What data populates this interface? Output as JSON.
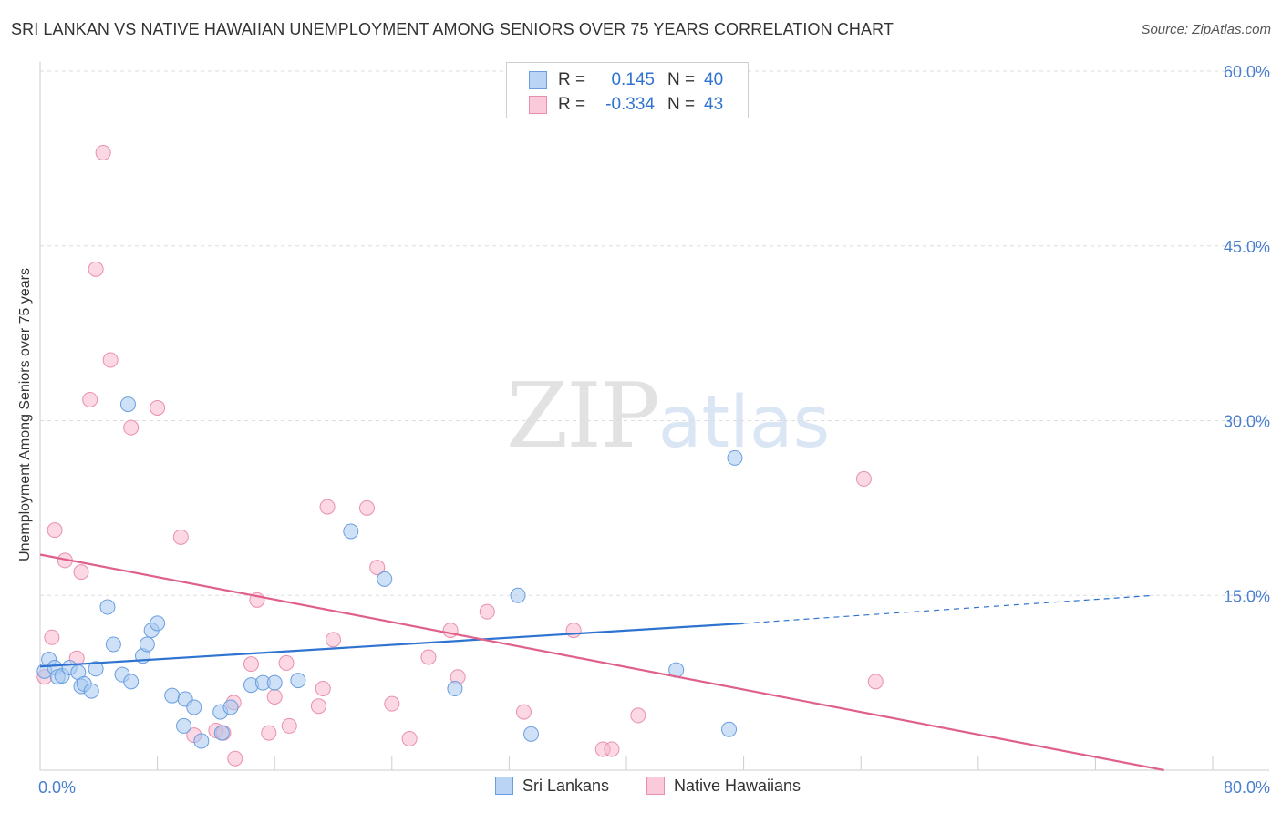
{
  "title": "SRI LANKAN VS NATIVE HAWAIIAN UNEMPLOYMENT AMONG SENIORS OVER 75 YEARS CORRELATION CHART",
  "source": "Source: ZipAtlas.com",
  "watermark": {
    "zip": "ZIP",
    "atlas": "atlas"
  },
  "colors": {
    "blue_fill": "#a8c8f0",
    "blue_stroke": "#6a9ee0",
    "blue_line": "#2f73d0",
    "pink_fill": "#f7b8cc",
    "pink_stroke": "#ea8fab",
    "pink_line": "#e0608c",
    "tick_label": "#4a7fd0",
    "grid": "#dddddd"
  },
  "legend": {
    "rows": [
      {
        "r_label": "R =",
        "r_value": "0.145",
        "n_label": "N =",
        "n_value": "40"
      },
      {
        "r_label": "R =",
        "r_value": "-0.334",
        "n_label": "N =",
        "n_value": "43"
      }
    ]
  },
  "bottom_legend": {
    "series1": "Sri Lankans",
    "series2": "Native Hawaiians"
  },
  "chart_data": {
    "type": "scatter",
    "title": "SRI LANKAN VS NATIVE HAWAIIAN UNEMPLOYMENT AMONG SENIORS OVER 75 YEARS CORRELATION CHART",
    "xlabel": "",
    "ylabel": "Unemployment Among Seniors over 75 years",
    "xlim": [
      0,
      80
    ],
    "ylim": [
      0,
      60
    ],
    "x_tick_labels": [
      "0.0%",
      "80.0%"
    ],
    "y_ticks": [
      15,
      30,
      45,
      60
    ],
    "y_tick_labels": [
      "15.0%",
      "30.0%",
      "45.0%",
      "60.0%"
    ],
    "grid": true,
    "series": [
      {
        "name": "Sri Lankans",
        "r": 0.145,
        "n": 40,
        "trend": {
          "x0": 0,
          "y0": 8.9,
          "x1": 48,
          "y1": 12.6,
          "dash_x1": 76,
          "dash_y1": 15.0
        },
        "points": [
          [
            0.3,
            8.5
          ],
          [
            0.6,
            9.5
          ],
          [
            1.0,
            8.8
          ],
          [
            1.2,
            8.0
          ],
          [
            1.5,
            8.1
          ],
          [
            2.0,
            8.8
          ],
          [
            2.6,
            8.4
          ],
          [
            2.8,
            7.2
          ],
          [
            3.0,
            7.4
          ],
          [
            3.5,
            6.8
          ],
          [
            3.8,
            8.7
          ],
          [
            4.6,
            14.0
          ],
          [
            5.0,
            10.8
          ],
          [
            5.6,
            8.2
          ],
          [
            6.2,
            7.6
          ],
          [
            7.0,
            9.8
          ],
          [
            7.3,
            10.8
          ],
          [
            7.6,
            12.0
          ],
          [
            8.0,
            12.6
          ],
          [
            9.0,
            6.4
          ],
          [
            9.8,
            3.8
          ],
          [
            9.9,
            6.1
          ],
          [
            10.5,
            5.4
          ],
          [
            11.0,
            2.5
          ],
          [
            12.3,
            5.0
          ],
          [
            12.4,
            3.2
          ],
          [
            13.0,
            5.4
          ],
          [
            14.4,
            7.3
          ],
          [
            15.2,
            7.5
          ],
          [
            16.0,
            7.5
          ],
          [
            17.6,
            7.7
          ],
          [
            21.2,
            20.5
          ],
          [
            23.5,
            16.4
          ],
          [
            28.3,
            7.0
          ],
          [
            32.6,
            15.0
          ],
          [
            33.5,
            3.1
          ],
          [
            43.4,
            8.6
          ],
          [
            47.0,
            3.5
          ],
          [
            47.4,
            26.8
          ],
          [
            6.0,
            31.4
          ]
        ]
      },
      {
        "name": "Native Hawaiians",
        "r": -0.334,
        "n": 43,
        "trend": {
          "x0": 0,
          "y0": 18.5,
          "x1": 80,
          "y1": -0.8
        },
        "points": [
          [
            0.3,
            8.0
          ],
          [
            0.8,
            11.4
          ],
          [
            1.0,
            20.6
          ],
          [
            1.7,
            18.0
          ],
          [
            2.5,
            9.6
          ],
          [
            2.8,
            17.0
          ],
          [
            3.4,
            31.8
          ],
          [
            3.8,
            43.0
          ],
          [
            4.3,
            53.0
          ],
          [
            4.8,
            35.2
          ],
          [
            6.2,
            29.4
          ],
          [
            8.0,
            31.1
          ],
          [
            9.6,
            20.0
          ],
          [
            10.5,
            3.0
          ],
          [
            12.0,
            3.4
          ],
          [
            12.5,
            3.2
          ],
          [
            13.2,
            5.8
          ],
          [
            13.3,
            1.0
          ],
          [
            14.4,
            9.1
          ],
          [
            14.8,
            14.6
          ],
          [
            15.6,
            3.2
          ],
          [
            16.0,
            6.3
          ],
          [
            16.8,
            9.2
          ],
          [
            17.0,
            3.8
          ],
          [
            19.0,
            5.5
          ],
          [
            19.3,
            7.0
          ],
          [
            19.6,
            22.6
          ],
          [
            20.0,
            11.2
          ],
          [
            22.3,
            22.5
          ],
          [
            23.0,
            17.4
          ],
          [
            24.0,
            5.7
          ],
          [
            25.2,
            2.7
          ],
          [
            26.5,
            9.7
          ],
          [
            28.0,
            12.0
          ],
          [
            28.5,
            8.0
          ],
          [
            30.5,
            13.6
          ],
          [
            33.0,
            5.0
          ],
          [
            36.4,
            12.0
          ],
          [
            38.4,
            1.8
          ],
          [
            39.0,
            1.8
          ],
          [
            40.8,
            4.7
          ],
          [
            56.2,
            25.0
          ],
          [
            57.0,
            7.6
          ]
        ]
      }
    ]
  }
}
